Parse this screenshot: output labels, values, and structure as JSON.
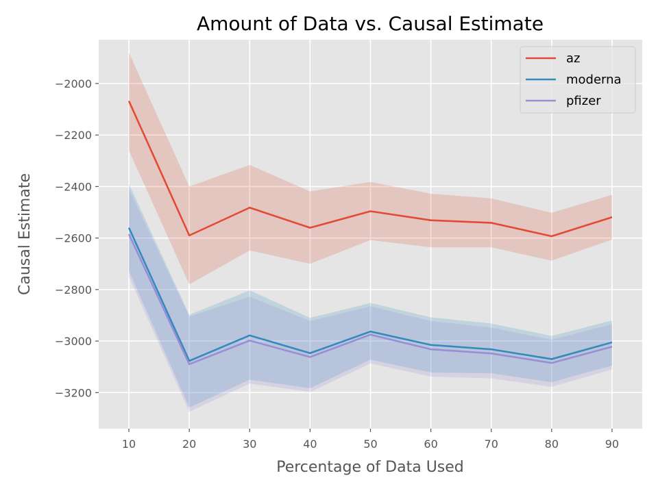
{
  "chart_data": {
    "type": "line",
    "title": "Amount of Data vs. Causal Estimate",
    "xlabel": "Percentage of Data Used",
    "ylabel": "Causal Estimate",
    "x": [
      10,
      20,
      30,
      40,
      50,
      60,
      70,
      80,
      90
    ],
    "xticks": [
      "10",
      "20",
      "30",
      "40",
      "50",
      "60",
      "70",
      "80",
      "90"
    ],
    "yticks": [
      "−2000",
      "−2200",
      "−2400",
      "−2600",
      "−2800",
      "−3000",
      "−3200"
    ],
    "ytick_values": [
      -2000,
      -2200,
      -2400,
      -2600,
      -2800,
      -3000,
      -3200
    ],
    "xlim": [
      5,
      95
    ],
    "ylim": [
      -3340,
      -1830
    ],
    "grid": true,
    "legend_position": "top-right",
    "series": [
      {
        "name": "az",
        "color": "#E24A33",
        "values": [
          -2068,
          -2590,
          -2482,
          -2560,
          -2496,
          -2531,
          -2541,
          -2593,
          -2519
        ],
        "lower": [
          -2260,
          -2780,
          -2648,
          -2700,
          -2608,
          -2636,
          -2636,
          -2688,
          -2606
        ],
        "upper": [
          -1880,
          -2400,
          -2316,
          -2419,
          -2382,
          -2428,
          -2446,
          -2502,
          -2432
        ]
      },
      {
        "name": "moderna",
        "color": "#348ABD",
        "values": [
          -2560,
          -3077,
          -2978,
          -3047,
          -2963,
          -3015,
          -3032,
          -3070,
          -3005
        ],
        "lower": [
          -2728,
          -3258,
          -3150,
          -3183,
          -3072,
          -3122,
          -3125,
          -3160,
          -3095
        ],
        "upper": [
          -2390,
          -2898,
          -2803,
          -2910,
          -2852,
          -2908,
          -2932,
          -2980,
          -2920
        ]
      },
      {
        "name": "pfizer",
        "color": "#988ED5",
        "values": [
          -2585,
          -3090,
          -2998,
          -3062,
          -2975,
          -3032,
          -3048,
          -3085,
          -3022
        ],
        "lower": [
          -2750,
          -3275,
          -3165,
          -3198,
          -3087,
          -3138,
          -3145,
          -3178,
          -3110
        ],
        "upper": [
          -2410,
          -2905,
          -2828,
          -2922,
          -2865,
          -2922,
          -2948,
          -2995,
          -2935
        ]
      }
    ]
  }
}
